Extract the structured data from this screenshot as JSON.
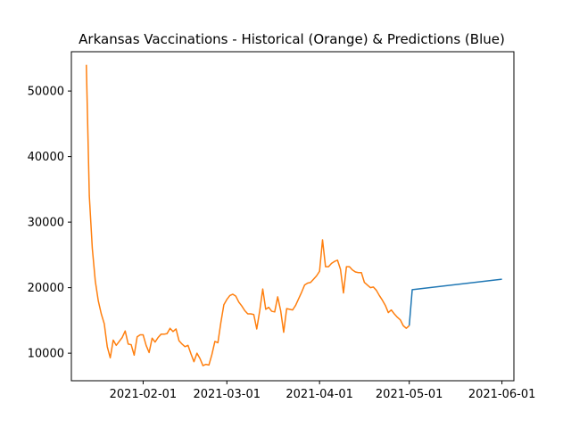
{
  "chart_data": {
    "type": "line",
    "title": "Arkansas Vaccinations - Historical (Orange) & Predictions (Blue)",
    "xlabel": "",
    "ylabel": "",
    "x_axis_type": "date",
    "xlim": [
      "2021-01-08",
      "2021-06-05"
    ],
    "ylim": [
      5800,
      56000
    ],
    "x_ticks": [
      "2021-02-01",
      "2021-03-01",
      "2021-04-01",
      "2021-05-01",
      "2021-06-01"
    ],
    "y_ticks": [
      10000,
      20000,
      30000,
      40000,
      50000
    ],
    "grid": false,
    "legend": "none",
    "series": [
      {
        "color": "#1f77b4",
        "x": [
          "2021-05-01",
          "2021-05-02",
          "2021-06-01"
        ],
        "y": [
          14200,
          19700,
          21300
        ]
      },
      {
        "color": "#ff7f0e",
        "x": [
          "2021-01-13",
          "2021-01-14",
          "2021-01-15",
          "2021-01-16",
          "2021-01-17",
          "2021-01-18",
          "2021-01-19",
          "2021-01-20",
          "2021-01-21",
          "2021-01-22",
          "2021-01-23",
          "2021-01-24",
          "2021-01-25",
          "2021-01-26",
          "2021-01-27",
          "2021-01-28",
          "2021-01-29",
          "2021-01-30",
          "2021-01-31",
          "2021-02-01",
          "2021-02-02",
          "2021-02-03",
          "2021-02-04",
          "2021-02-05",
          "2021-02-06",
          "2021-02-07",
          "2021-02-08",
          "2021-02-09",
          "2021-02-10",
          "2021-02-11",
          "2021-02-12",
          "2021-02-13",
          "2021-02-14",
          "2021-02-15",
          "2021-02-16",
          "2021-02-17",
          "2021-02-18",
          "2021-02-19",
          "2021-02-20",
          "2021-02-21",
          "2021-02-22",
          "2021-02-23",
          "2021-02-24",
          "2021-02-25",
          "2021-02-26",
          "2021-02-27",
          "2021-02-28",
          "2021-03-01",
          "2021-03-02",
          "2021-03-03",
          "2021-03-04",
          "2021-03-05",
          "2021-03-06",
          "2021-03-07",
          "2021-03-08",
          "2021-03-09",
          "2021-03-10",
          "2021-03-11",
          "2021-03-12",
          "2021-03-13",
          "2021-03-14",
          "2021-03-15",
          "2021-03-16",
          "2021-03-17",
          "2021-03-18",
          "2021-03-19",
          "2021-03-20",
          "2021-03-21",
          "2021-03-22",
          "2021-03-23",
          "2021-03-24",
          "2021-03-25",
          "2021-03-26",
          "2021-03-27",
          "2021-03-28",
          "2021-03-29",
          "2021-03-30",
          "2021-03-31",
          "2021-04-01",
          "2021-04-02",
          "2021-04-03",
          "2021-04-04",
          "2021-04-05",
          "2021-04-06",
          "2021-04-07",
          "2021-04-08",
          "2021-04-09",
          "2021-04-10",
          "2021-04-11",
          "2021-04-12",
          "2021-04-13",
          "2021-04-14",
          "2021-04-15",
          "2021-04-16",
          "2021-04-17",
          "2021-04-18",
          "2021-04-19",
          "2021-04-20",
          "2021-04-21",
          "2021-04-22",
          "2021-04-23",
          "2021-04-24",
          "2021-04-25",
          "2021-04-26",
          "2021-04-27",
          "2021-04-28",
          "2021-04-29",
          "2021-04-30",
          "2021-05-01"
        ],
        "y": [
          54000,
          34000,
          26000,
          21000,
          18000,
          16000,
          14500,
          11000,
          9300,
          12000,
          11200,
          11800,
          12400,
          13400,
          11400,
          11300,
          9700,
          12500,
          12800,
          12800,
          11200,
          10100,
          12300,
          11700,
          12400,
          12900,
          12900,
          13000,
          13800,
          13300,
          13700,
          11900,
          11400,
          11000,
          11200,
          9900,
          8700,
          10000,
          9200,
          8100,
          8300,
          8200,
          9800,
          11800,
          11600,
          14700,
          17400,
          18200,
          18800,
          19000,
          18700,
          17800,
          17200,
          16500,
          16000,
          16000,
          15900,
          13700,
          16500,
          19800,
          16700,
          17000,
          16400,
          16300,
          18600,
          16500,
          13200,
          16800,
          16700,
          16600,
          17300,
          18300,
          19300,
          20400,
          20700,
          20800,
          21300,
          21800,
          22500,
          27300,
          23200,
          23200,
          23700,
          24000,
          24200,
          22800,
          19200,
          23200,
          23200,
          22700,
          22400,
          22300,
          22300,
          20800,
          20400,
          20000,
          20100,
          19600,
          18800,
          18100,
          17300,
          16200,
          16600,
          16000,
          15500,
          15100,
          14200,
          13800,
          14200
        ]
      }
    ]
  }
}
